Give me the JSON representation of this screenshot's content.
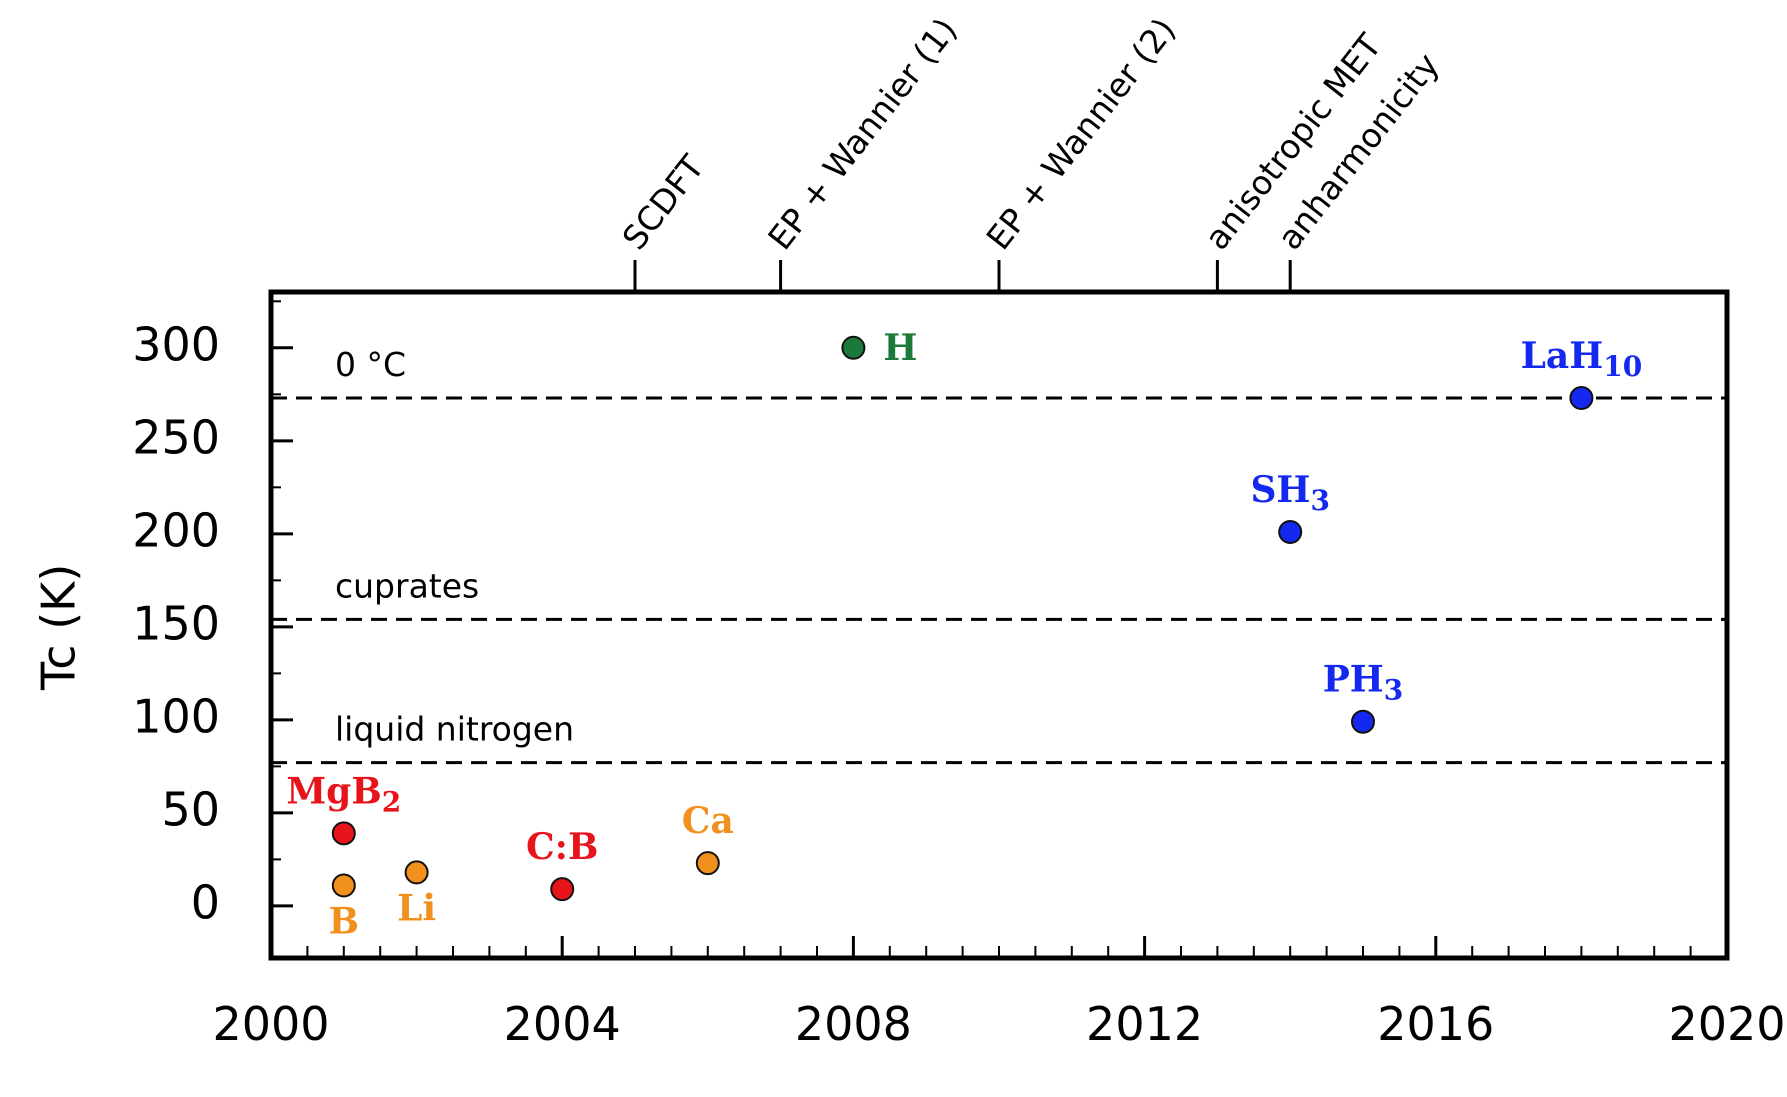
{
  "chart_data": {
    "type": "scatter",
    "title": "",
    "xlabel": "",
    "ylabel": "Tc (K)",
    "xlim": [
      2000,
      2020
    ],
    "ylim": [
      -28,
      330
    ],
    "x_ticks": [
      2000,
      2004,
      2008,
      2012,
      2016,
      2020
    ],
    "x_tick_labels": [
      "2000",
      "2004",
      "2008",
      "2012",
      "2016",
      "2020"
    ],
    "y_ticks": [
      0,
      50,
      100,
      150,
      200,
      250,
      300
    ],
    "y_tick_labels": [
      "0",
      "50",
      "100",
      "150",
      "200",
      "250",
      "300"
    ],
    "reference_lines": [
      {
        "y": 273,
        "label": "0 °C"
      },
      {
        "y": 154,
        "label": "cuprates"
      },
      {
        "y": 77,
        "label": "liquid nitrogen"
      }
    ],
    "methods": [
      {
        "year": 2005,
        "label": "SCDFT"
      },
      {
        "year": 2007,
        "label": "EP + Wannier (1)"
      },
      {
        "year": 2010,
        "label": "EP + Wannier (2)"
      },
      {
        "year": 2013,
        "label": "anisotropic MET"
      },
      {
        "year": 2014,
        "label": "anharmonicity"
      }
    ],
    "points": [
      {
        "name": "MgB2",
        "main": "MgB",
        "sub": "2",
        "x": 2001,
        "y": 39,
        "color": "#e8141b",
        "label_pos": "above"
      },
      {
        "name": "B",
        "main": "B",
        "sub": "",
        "x": 2001,
        "y": 11,
        "color": "#f2901e",
        "label_pos": "below"
      },
      {
        "name": "Li",
        "main": "Li",
        "sub": "",
        "x": 2002,
        "y": 18,
        "color": "#f2901e",
        "label_pos": "below"
      },
      {
        "name": "C:B",
        "main": "C:B",
        "sub": "",
        "x": 2004,
        "y": 9,
        "color": "#e8141b",
        "label_pos": "above"
      },
      {
        "name": "Ca",
        "main": "Ca",
        "sub": "",
        "x": 2006,
        "y": 23,
        "color": "#f2901e",
        "label_pos": "above"
      },
      {
        "name": "H",
        "main": "H",
        "sub": "",
        "x": 2008,
        "y": 300,
        "color": "#1b7a3a",
        "label_pos": "right"
      },
      {
        "name": "SH3",
        "main": "SH",
        "sub": "3",
        "x": 2014,
        "y": 201,
        "color": "#1428f0",
        "label_pos": "above"
      },
      {
        "name": "PH3",
        "main": "PH",
        "sub": "3",
        "x": 2015,
        "y": 99,
        "color": "#1428f0",
        "label_pos": "above"
      },
      {
        "name": "LaH10",
        "main": "LaH",
        "sub": "10",
        "x": 2018,
        "y": 273,
        "color": "#1428f0",
        "label_pos": "above"
      }
    ]
  }
}
